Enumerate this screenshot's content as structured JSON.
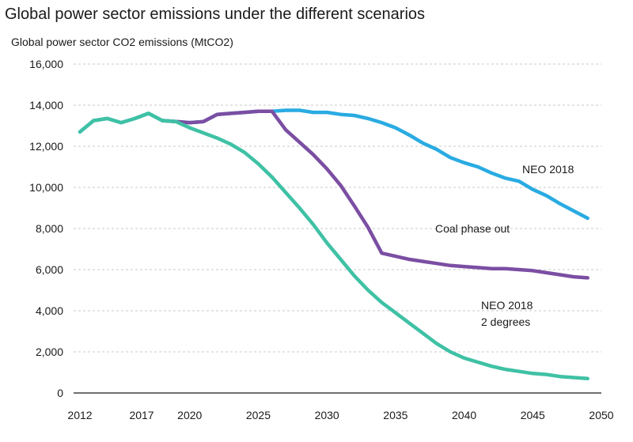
{
  "chart_data": {
    "type": "line",
    "title": "Global power sector emissions under the different scenarios",
    "ylabel": "Global power sector CO2 emissions (MtCO2)",
    "xlabel": "",
    "ylim": [
      0,
      16000
    ],
    "xlim": [
      2012,
      2050
    ],
    "grid": true,
    "y_ticks": [
      "16,000",
      "14,000",
      "12,000",
      "10,000",
      "8,000",
      "6,000",
      "4,000",
      "2,000",
      "0"
    ],
    "x_ticks": [
      "2012",
      "2017",
      "2020",
      "2025",
      "2030",
      "2035",
      "2040",
      "2045",
      "2050"
    ],
    "x_tick_values": [
      2012,
      2016.5,
      2020,
      2025,
      2030,
      2035,
      2040,
      2045,
      2050
    ],
    "series": [
      {
        "name": "NEO 2018",
        "color": "#29abe2",
        "x": [
          2012,
          2013,
          2014,
          2015,
          2016,
          2017,
          2018,
          2019,
          2020,
          2021,
          2022,
          2023,
          2024,
          2025,
          2026,
          2027,
          2028,
          2029,
          2030,
          2031,
          2032,
          2033,
          2034,
          2035,
          2036,
          2037,
          2038,
          2039,
          2040,
          2041,
          2042,
          2043,
          2044,
          2045,
          2046,
          2047,
          2048,
          2049
        ],
        "y": [
          12700,
          13250,
          13350,
          13150,
          13350,
          13600,
          13250,
          13200,
          13150,
          13200,
          13550,
          13600,
          13650,
          13700,
          13700,
          13750,
          13750,
          13650,
          13650,
          13550,
          13500,
          13350,
          13150,
          12900,
          12550,
          12150,
          11850,
          11450,
          11200,
          11000,
          10700,
          10450,
          10300,
          9900,
          9600,
          9200,
          8850,
          8500
        ]
      },
      {
        "name": "Coal phase out",
        "color": "#7b4ea3",
        "x": [
          2018,
          2019,
          2020,
          2021,
          2022,
          2023,
          2024,
          2025,
          2026,
          2027,
          2028,
          2029,
          2030,
          2031,
          2032,
          2033,
          2034,
          2035,
          2036,
          2037,
          2038,
          2039,
          2040,
          2041,
          2042,
          2043,
          2044,
          2045,
          2046,
          2047,
          2048,
          2049
        ],
        "y": [
          13250,
          13200,
          13150,
          13200,
          13550,
          13600,
          13650,
          13700,
          13700,
          12800,
          12200,
          11600,
          10900,
          10100,
          9100,
          8050,
          6800,
          6650,
          6500,
          6400,
          6300,
          6200,
          6150,
          6100,
          6050,
          6050,
          6000,
          5950,
          5850,
          5750,
          5650,
          5600
        ]
      },
      {
        "name": "NEO 2018 2 degrees",
        "color": "#3fc1a5",
        "x": [
          2012,
          2013,
          2014,
          2015,
          2016,
          2017,
          2018,
          2019,
          2020,
          2021,
          2022,
          2023,
          2024,
          2025,
          2026,
          2027,
          2028,
          2029,
          2030,
          2031,
          2032,
          2033,
          2034,
          2035,
          2036,
          2037,
          2038,
          2039,
          2040,
          2041,
          2042,
          2043,
          2044,
          2045,
          2046,
          2047,
          2048,
          2049
        ],
        "y": [
          12700,
          13250,
          13350,
          13150,
          13350,
          13600,
          13250,
          13200,
          12900,
          12650,
          12400,
          12100,
          11700,
          11150,
          10500,
          9750,
          9000,
          8200,
          7300,
          6500,
          5700,
          5000,
          4400,
          3900,
          3400,
          2900,
          2400,
          2000,
          1700,
          1500,
          1300,
          1150,
          1050,
          950,
          900,
          800,
          750,
          700
        ]
      }
    ],
    "annotations": [
      {
        "text": "NEO 2018",
        "series": 0
      },
      {
        "text": "Coal phase out",
        "series": 1
      },
      {
        "text": "NEO 2018",
        "series": 2
      },
      {
        "text": "2 degrees",
        "series": 2
      }
    ]
  }
}
